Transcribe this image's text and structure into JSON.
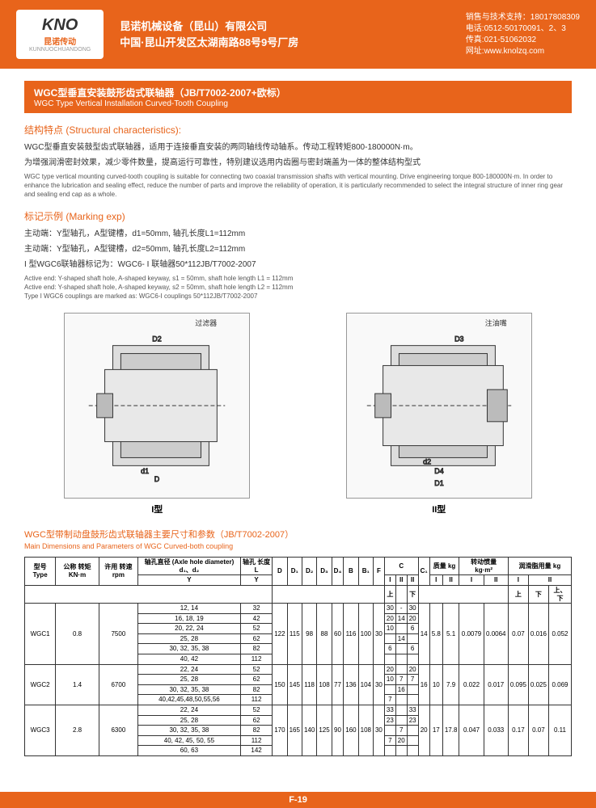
{
  "header": {
    "logo": {
      "main": "KNO",
      "sub": "昆诺传动",
      "pinyin": "KUNNUOCHUANDONG"
    },
    "company": {
      "l1": "昆诺机械设备（昆山）有限公司",
      "l2": "中国·昆山开发区太湖南路88号9号厂房"
    },
    "contact": {
      "l1": "销售与技术支持：18017808309",
      "l2": "电话:0512-50170091、2、3",
      "l3": "传真:021-51062032",
      "l4": "网址:www.knolzq.com"
    }
  },
  "title": {
    "cn": "WGC型垂直安装鼓形齿式联轴器（JB/T7002-2007+欧标）",
    "en": "WGC Type Vertical Installation Curved-Tooth Coupling"
  },
  "struct": {
    "h": "结构特点 (Structural characteristics):",
    "cn1": "WGC型垂直安装鼓型齿式联轴器，适用于连接垂直安装的两同轴线传动轴系。传动工程转矩800-180000N·m。",
    "cn2": "为增强润滑密封效果，减少零件数量，提高运行可靠性，特别建议选用内齿圈与密封端盖为一体的整体结构型式",
    "en": "WGC type vertical mounting curved-tooth coupling is suitable for connecting two coaxial transmission shafts with vertical mounting. Drive engineering torque 800-180000N·m. In order to enhance the lubrication and sealing effect, reduce the number of parts and improve the reliability of operation, it is particularly recommended to select the integral structure of inner ring gear and sealing end cap as a whole."
  },
  "marking": {
    "h": "标记示例 (Marking exp)",
    "l1": "主动端：Y型轴孔，A型键槽，d1=50mm, 轴孔长度L1=112mm",
    "l2": "主动端：Y型轴孔，A型键槽，d2=50mm, 轴孔长度L2=112mm",
    "l3": "I 型WGC6联轴器标记为：WGC6- I 联轴器50*112JB/T7002-2007",
    "e1": "Active end: Y-shaped shaft hole, A-shaped keyway, s1 = 50mm, shaft hole length L1 = 112mm",
    "e2": "Active end: Y-shaped shaft hole, A-shaped keyway, s2 = 50mm, shaft hole length L2 = 112mm",
    "e3": "Type I WGC6 couplings are marked as: WGC6-I couplings 50*112JB/T7002-2007"
  },
  "diag": {
    "l1": "I型",
    "l2": "II型",
    "oil": "注油嘴",
    "filter": "过滤器"
  },
  "tbl": {
    "tcn": "WGC型带制动盘鼓形齿式联轴器主要尺寸和参数（JB/T7002-2007）",
    "ten": "Main Dimensions and Parameters of WGC Curved-both coupling",
    "h": {
      "type": "型号\nType",
      "tn": "公称\n转矩\nKN·m",
      "rpm": "许用\n转速\nrpm",
      "axle": "轴孔直径\n(Axle hole diameter)\nd₁、d₂",
      "len": "轴孔\n长度 L",
      "D": "D",
      "D1": "D₁",
      "D2": "D₂",
      "D3": "D₃",
      "D4": "D₄",
      "B": "B",
      "B1": "B₁",
      "F": "F",
      "C": "C",
      "C1": "C₁",
      "mass": "质量 kg",
      "moi": "转动惯量\nkg·m²",
      "lub": "润滑脂用量 kg"
    },
    "sub": {
      "Y": "Y",
      "I": "I",
      "II": "II",
      "up": "上",
      "dn": "下",
      "ud": "上、下"
    },
    "rows": [
      {
        "type": "WGC1",
        "tn": "0.8",
        "rpm": "7500",
        "axles": [
          "12, 14",
          "16, 18, 19",
          "20, 22, 24",
          "25, 28",
          "30, 32, 35, 38",
          "40, 42"
        ],
        "lens": [
          "32",
          "42",
          "52",
          "62",
          "82",
          "112"
        ],
        "D": "122",
        "D1": "115",
        "D2": "98",
        "D3": "88",
        "D4": "60",
        "B": "116",
        "B1": "100",
        "F": "30",
        "C": [
          [
            "30",
            "-",
            "30"
          ],
          [
            "20",
            "14",
            "20"
          ],
          [
            "10",
            "",
            "6"
          ],
          [
            "",
            "14",
            ""
          ],
          [
            "6",
            "",
            "6"
          ],
          [
            "",
            "",
            ""
          ]
        ],
        "C1": "14",
        "mI": "5.8",
        "mII": "5.1",
        "moiI": "0.0079",
        "moiII": "0.0064",
        "lI": "0.07",
        "lIIu": "0.016",
        "lIId": "0.052"
      },
      {
        "type": "WGC2",
        "tn": "1.4",
        "rpm": "6700",
        "axles": [
          "22, 24",
          "25, 28",
          "30, 32, 35, 38",
          "40,42,45,48,50,55,56"
        ],
        "lens": [
          "52",
          "62",
          "82",
          "112"
        ],
        "D": "150",
        "D1": "145",
        "D2": "118",
        "D3": "108",
        "D4": "77",
        "B": "136",
        "B1": "104",
        "F": "30",
        "C": [
          [
            "20",
            "",
            "20"
          ],
          [
            "10",
            "7",
            "7"
          ],
          [
            "",
            "16",
            ""
          ],
          [
            "7",
            "",
            ""
          ]
        ],
        "C1": "16",
        "mI": "10",
        "mII": "7.9",
        "moiI": "0.022",
        "moiII": "0.017",
        "lI": "0.095",
        "lIIu": "0.025",
        "lIId": "0.069"
      },
      {
        "type": "WGC3",
        "tn": "2.8",
        "rpm": "6300",
        "axles": [
          "22, 24",
          "25, 28",
          "30, 32, 35, 38",
          "40, 42, 45, 50, 55",
          "60, 63"
        ],
        "lens": [
          "52",
          "62",
          "82",
          "112",
          "142"
        ],
        "D": "170",
        "D1": "165",
        "D2": "140",
        "D3": "125",
        "D4": "90",
        "B": "160",
        "B1": "108",
        "F": "30",
        "C": [
          [
            "33",
            "",
            "33"
          ],
          [
            "23",
            "",
            "23"
          ],
          [
            "",
            "7",
            ""
          ],
          [
            "7",
            "20",
            ""
          ],
          [
            "",
            "",
            ""
          ]
        ],
        "C1": "20",
        "mI": "17",
        "mII": "17.8",
        "moiI": "0.047",
        "moiII": "0.033",
        "lI": "0.17",
        "lIIu": "0.07",
        "lIId": "0.11"
      }
    ]
  },
  "footer": "F-19"
}
